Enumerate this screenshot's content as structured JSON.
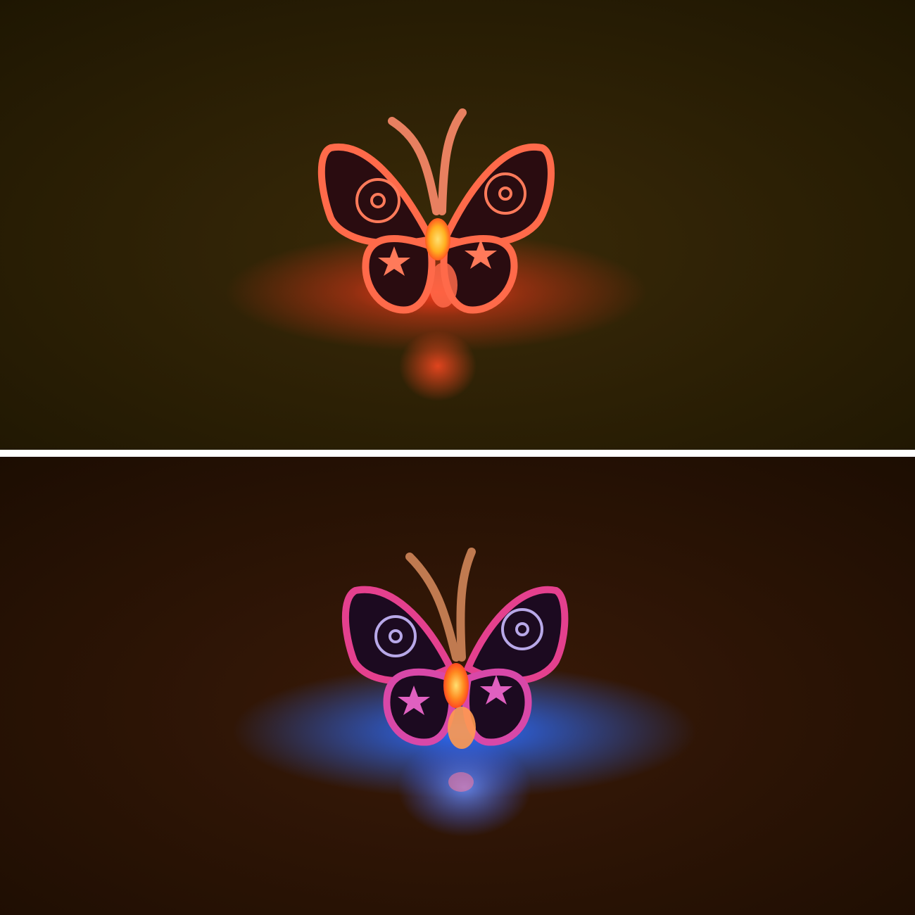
{
  "panels": [
    {
      "id": "top",
      "subject": "butterfly-night-light",
      "glow_color": "red",
      "colors": {
        "background_center": "#3a2a08",
        "background_edge": "#1e1602",
        "glow": "#ff3a1c",
        "glow_core": "#ffb020",
        "wing_edge": "#ff6a4a",
        "wing_fill": "#2a0c10"
      }
    },
    {
      "id": "bottom",
      "subject": "butterfly-night-light",
      "glow_color": "blue",
      "colors": {
        "background_center": "#3a1a08",
        "background_edge": "#1c0d02",
        "glow": "#2a6cff",
        "glow_core": "#ff8a20",
        "wing_edge": "#e4408e",
        "wing_fill": "#1c0a20"
      }
    }
  ]
}
